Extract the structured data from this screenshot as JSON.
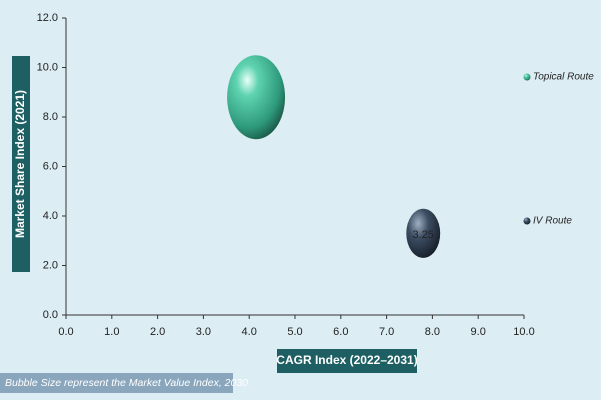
{
  "chart_data": {
    "type": "bubble",
    "x_label": "CAGR Index (2022–2031)",
    "y_label": "Market Share Index (2021)",
    "note": "Bubble Size represent the Market Value Index, 2030",
    "xlim": [
      0,
      10
    ],
    "ylim": [
      0,
      12
    ],
    "xticks": [
      {
        "value": 0,
        "label": "0.0"
      },
      {
        "value": 1,
        "label": "1.0"
      },
      {
        "value": 2,
        "label": "2.0"
      },
      {
        "value": 3,
        "label": "3.0"
      },
      {
        "value": 4,
        "label": "4.0"
      },
      {
        "value": 5,
        "label": "5.0"
      },
      {
        "value": 6,
        "label": "6.0"
      },
      {
        "value": 7,
        "label": "7.0"
      },
      {
        "value": 8,
        "label": "8.0"
      },
      {
        "value": 9,
        "label": "9.0"
      },
      {
        "value": 10,
        "label": "10.0"
      }
    ],
    "yticks": [
      {
        "value": 0,
        "label": "0.0"
      },
      {
        "value": 2,
        "label": "2.0"
      },
      {
        "value": 4,
        "label": "4.0"
      },
      {
        "value": 6,
        "label": "6.0"
      },
      {
        "value": 8,
        "label": "8.0"
      },
      {
        "value": 10,
        "label": "10.0"
      },
      {
        "value": 12,
        "label": "12.0"
      }
    ],
    "series": [
      {
        "name": "Topical Route",
        "color": "green",
        "x": [
          4.15
        ],
        "values": [
          8.8
        ],
        "sizes": [
          9.5
        ],
        "show_size_label": false
      },
      {
        "name": "IV Route",
        "color": "dark",
        "x": [
          7.8
        ],
        "values": [
          3.3
        ],
        "sizes": [
          3.25
        ],
        "show_size_label": true
      }
    ]
  }
}
